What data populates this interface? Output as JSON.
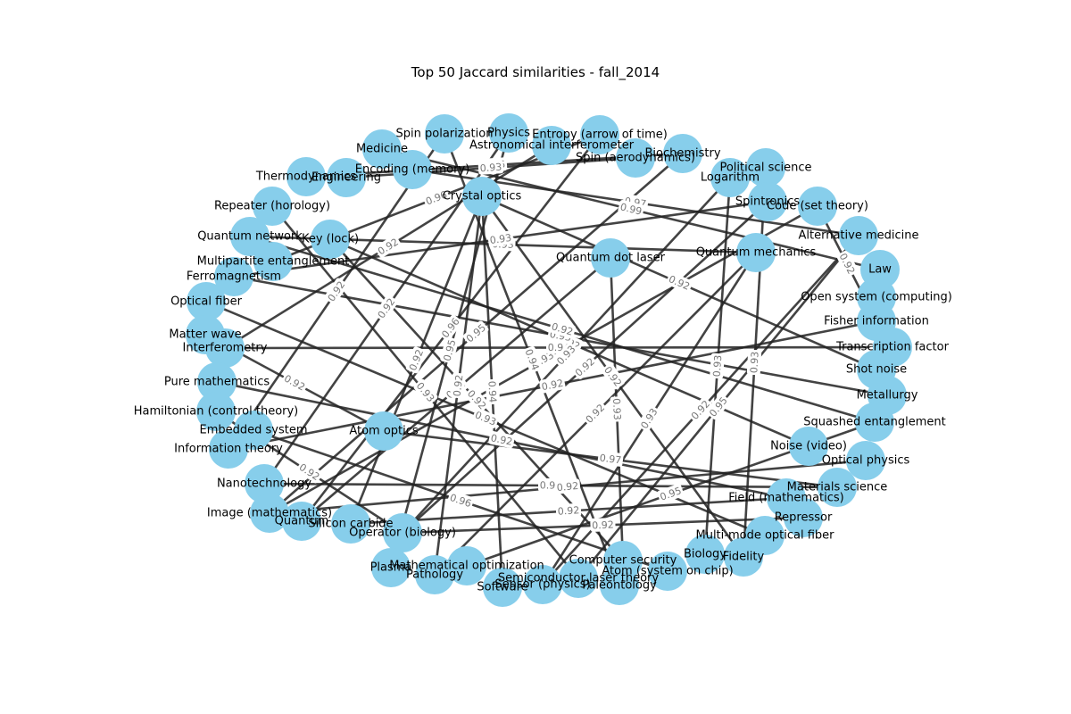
{
  "title": "Top 50 Jaccard similarities - fall_2014",
  "nodes": [
    "Spin polarization",
    "Physics",
    "Entropy (arrow of time)",
    "Astronomical interferometer",
    "Medicine",
    "Encoding (memory)",
    "Spin (aerodynamics)",
    "Biochemistry",
    "Political science",
    "Logarithm",
    "Thermodynamics",
    "Engineering",
    "Spintronics",
    "Code (set theory)",
    "Crystal optics",
    "Repeater (horology)",
    "Alternative medicine",
    "Quantum network",
    "Key (lock)",
    "Quantum dot laser",
    "Quantum mechanics",
    "Law",
    "Multipartite entanglement",
    "Ferromagnetism",
    "Open system (computing)",
    "Optical fiber",
    "Fisher information",
    "Matter wave",
    "Interferometry",
    "Transcription factor",
    "Shot noise",
    "Pure mathematics",
    "Metallurgy",
    "Hamiltonian (control theory)",
    "Squashed entanglement",
    "Embedded system",
    "Atom optics",
    "Information theory",
    "Noise (video)",
    "Optical physics",
    "Nanotechnology",
    "Materials science",
    "Field (mathematics)",
    "Image (mathematics)",
    "Quantum",
    "Silicon carbide",
    "Repressor",
    "Operator (biology)",
    "Multi-mode optical fiber",
    "Biology",
    "Fidelity",
    "Computer security",
    "Mathematical optimization",
    "Plasma",
    "Pathology",
    "Atom (system on chip)",
    "Semiconductor laser theory",
    "Sensor (physics)",
    "Software",
    "Paleontology"
  ],
  "edges": [
    {
      "source": "Encoding (memory)",
      "target": "Alternative medicine",
      "weight": "0.97"
    },
    {
      "source": "Thermodynamics",
      "target": "Biochemistry",
      "weight": "0.95"
    },
    {
      "source": "Medicine",
      "target": "Law",
      "weight": "0.99"
    },
    {
      "source": "Engineering",
      "target": "Spin (aerodynamics)",
      "weight": "0.93"
    },
    {
      "source": "Quantum network",
      "target": "Quantum mechanics",
      "weight": "0.93"
    },
    {
      "source": "Multipartite entanglement",
      "target": "Entropy (arrow of time)",
      "weight": "0.96"
    },
    {
      "source": "Ferromagnetism",
      "target": "Spintronics",
      "weight": "0.93"
    },
    {
      "source": "Optical fiber",
      "target": "Multi-mode optical fiber",
      "weight": "0.93"
    },
    {
      "source": "Matter wave",
      "target": "Atom optics",
      "weight": "0.92"
    },
    {
      "source": "Pure mathematics",
      "target": "Field (mathematics)",
      "weight": "0.92"
    },
    {
      "source": "Interferometry",
      "target": "Astronomical interferometer",
      "weight": "0.92"
    },
    {
      "source": "Hamiltonian (control theory)",
      "target": "Operator (biology)",
      "weight": "0.92"
    },
    {
      "source": "Embedded system",
      "target": "Atom (system on chip)",
      "weight": "0.96"
    },
    {
      "source": "Information theory",
      "target": "Fisher information",
      "weight": "0.92"
    },
    {
      "source": "Nanotechnology",
      "target": "Materials science",
      "weight": "0.92"
    },
    {
      "source": "Image (mathematics)",
      "target": "Code (set theory)",
      "weight": "0.93"
    },
    {
      "source": "Quantum",
      "target": "Quantum dot laser",
      "weight": "0.94"
    },
    {
      "source": "Silicon carbide",
      "target": "Crystal optics",
      "weight": "0.92"
    },
    {
      "source": "Repressor",
      "target": "Operator (biology)",
      "weight": "0.92"
    },
    {
      "source": "Biology",
      "target": "Logarithm",
      "weight": "0.93"
    },
    {
      "source": "Fidelity",
      "target": "Political science",
      "weight": "0.93"
    },
    {
      "source": "Computer security",
      "target": "Key (lock)",
      "weight": "0.92"
    },
    {
      "source": "Mathematical optimization",
      "target": "Squashed entanglement",
      "weight": "0.95"
    },
    {
      "source": "Plasma",
      "target": "Physics",
      "weight": "0.95"
    },
    {
      "source": "Pathology",
      "target": "Crystal optics",
      "weight": "0.92"
    },
    {
      "source": "Semiconductor laser theory",
      "target": "Alternative medicine",
      "weight": "0.95"
    },
    {
      "source": "Sensor (physics)",
      "target": "Quantum mechanics",
      "weight": "0.93"
    },
    {
      "source": "Software",
      "target": "Crystal optics",
      "weight": "0.94"
    },
    {
      "source": "Paleontology",
      "target": "Spin polarization",
      "weight": "0.94"
    },
    {
      "source": "Noise (video)",
      "target": "Key (lock)",
      "weight": "0.92"
    },
    {
      "source": "Optical physics",
      "target": "Image (mathematics)",
      "weight": "0.92"
    },
    {
      "source": "Shot noise",
      "target": "Crystal optics",
      "weight": "0.92"
    },
    {
      "source": "Metallurgy",
      "target": "Ferromagnetism",
      "weight": "0.93"
    },
    {
      "source": "Transcription factor",
      "target": "Interferometry",
      "weight": "0.94"
    },
    {
      "source": "Open system (computing)",
      "target": "Squashed entanglement",
      "weight": "0.93"
    },
    {
      "source": "Squashed entanglement",
      "target": "Quantum network",
      "weight": "0.92"
    },
    {
      "source": "Spintronics",
      "target": "Operator (biology)",
      "weight": "0.92"
    },
    {
      "source": "Code (set theory)",
      "target": "Fisher information",
      "weight": "0.92"
    },
    {
      "source": "Repeater (horology)",
      "target": "Semiconductor laser theory",
      "weight": "0.93"
    },
    {
      "source": "Spin polarization",
      "target": "Information theory",
      "weight": "0.92"
    },
    {
      "source": "Quantum dot laser",
      "target": "Computer security",
      "weight": "0.93"
    },
    {
      "source": "Quantum mechanics",
      "target": "Pathology",
      "weight": "0.92"
    },
    {
      "source": "Atom optics",
      "target": "Materials science",
      "weight": "0.97"
    },
    {
      "source": "Field (mathematics)",
      "target": "Silicon carbide",
      "weight": "0.92"
    },
    {
      "source": "Entropy (arrow of time)",
      "target": "Quantum",
      "weight": "0.96"
    },
    {
      "source": "Biochemistry",
      "target": "Image (mathematics)",
      "weight": "0.95"
    },
    {
      "source": "Physics",
      "target": "Nanotechnology",
      "weight": "0.92"
    },
    {
      "source": "Alternative medicine",
      "target": "Sensor (physics)",
      "weight": "0.92"
    },
    {
      "source": "Logarithm",
      "target": "Operator (biology)",
      "weight": "0.93"
    },
    {
      "source": "Crystal optics",
      "target": "Fidelity",
      "weight": "0.92"
    }
  ]
}
